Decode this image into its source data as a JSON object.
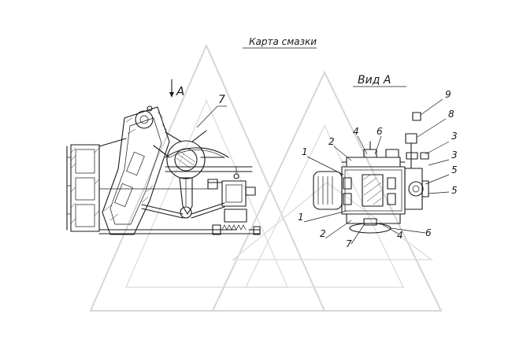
{
  "title": "Карта смазки",
  "view_label": "Вид А",
  "section_marker": "А",
  "left_callouts": [
    "7"
  ],
  "right_callouts_left": [
    "1",
    "2",
    "4",
    "6",
    "1",
    "2",
    "7",
    "4",
    "6"
  ],
  "right_callouts_right": [
    "9",
    "8",
    "3",
    "3",
    "5",
    "5"
  ]
}
